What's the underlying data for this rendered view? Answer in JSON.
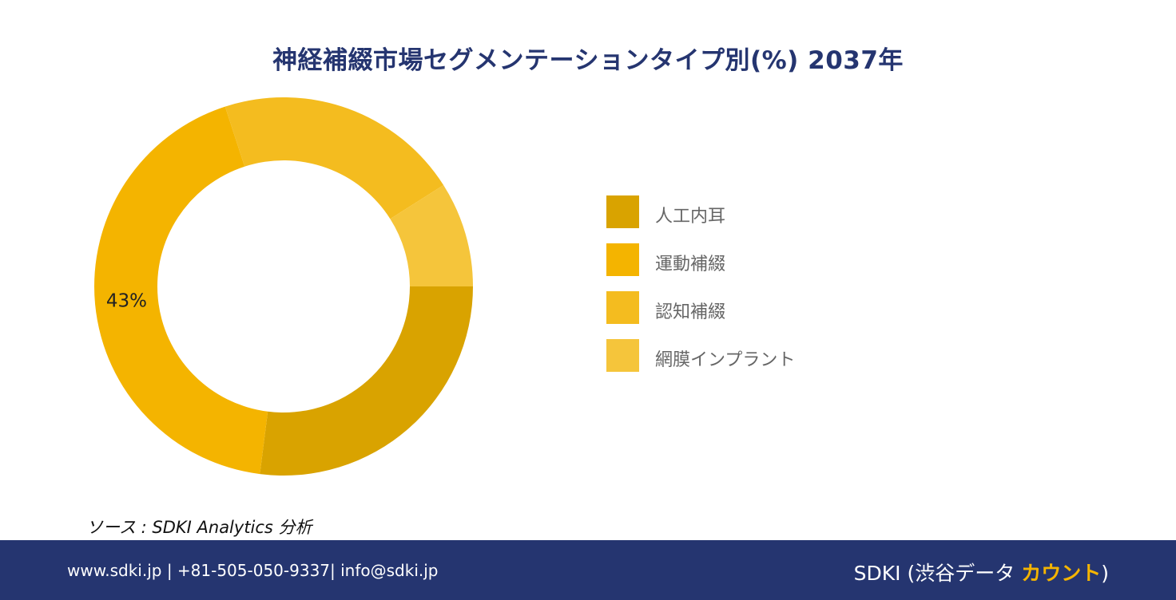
{
  "title": "神経補綴市場セグメンテーションタイプ別(%) 2037年",
  "chart_data": {
    "type": "pie",
    "style": "donut",
    "categories": [
      "人工内耳",
      "運動補綴",
      "認知補綴",
      "網膜インプラント"
    ],
    "values": [
      27,
      43,
      21,
      9
    ],
    "colors": [
      "#d9a300",
      "#f4b400",
      "#f4bc1f",
      "#f5c53b"
    ],
    "data_labels": [
      "",
      "43%",
      "",
      ""
    ],
    "legend_position": "right"
  },
  "source": "ソース : SDKI Analytics 分析",
  "footer": {
    "contact": "www.sdki.jp | +81-505-050-9337| info@sdki.jp",
    "brand_prefix": "SDKI (渋谷データ ",
    "brand_accent": "カウント",
    "brand_suffix": ")"
  }
}
